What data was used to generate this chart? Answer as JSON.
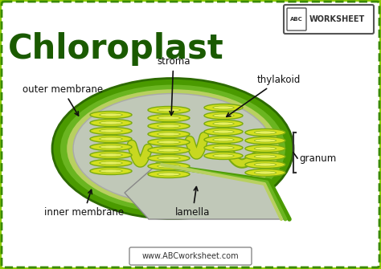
{
  "title": "Chloroplast",
  "bg_color": "#8fce00",
  "white_bg": "#ffffff",
  "border_color": "#3a8a00",
  "outer_green_dark": "#4a9a00",
  "outer_green_mid": "#6ab520",
  "inner_membrane_light": "#b8d060",
  "stroma_color": "#c0c8b8",
  "thylakoid_yellow": "#d4e020",
  "thylakoid_edge": "#7aaa10",
  "thylakoid_light": "#e8f060",
  "lamella_color": "#c8d820",
  "lamella_edge": "#7aaa10",
  "label_color": "#111111",
  "title_color": "#1a5a00",
  "website_text": "www.ABCworksheet.com",
  "labels": {
    "outer_membrane": "outer membrane",
    "inner_membrane": "inner membrane",
    "stroma": "stroma",
    "thylakoid": "thylakoid",
    "granum": "granum",
    "lamella": "lamella"
  },
  "worksheet_text": "WORKSHEET"
}
